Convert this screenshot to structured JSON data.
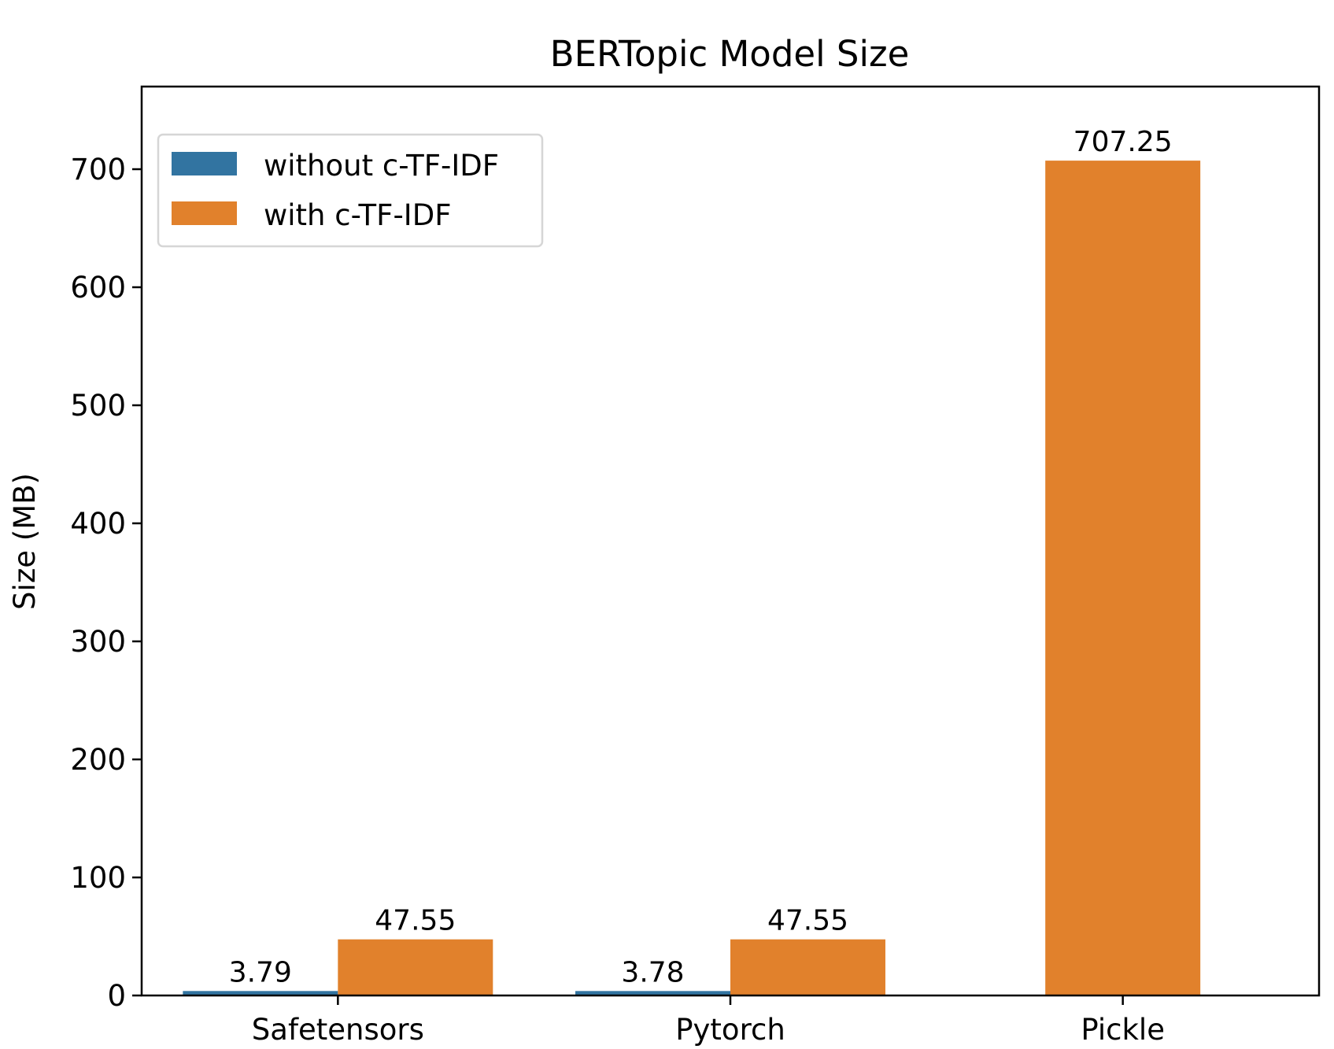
{
  "chart_data": {
    "type": "bar",
    "title": "BERTopic Model Size",
    "xlabel": "",
    "ylabel": "Size (MB)",
    "ylim": [
      0,
      770
    ],
    "yticks": [
      0,
      100,
      200,
      300,
      400,
      500,
      600,
      700
    ],
    "categories": [
      "Safetensors",
      "Pytorch",
      "Pickle"
    ],
    "series": [
      {
        "name": "without c-TF-IDF",
        "color": "#3274a1",
        "values": [
          3.79,
          3.78,
          null
        ],
        "labels": [
          "3.79",
          "3.78",
          ""
        ]
      },
      {
        "name": "with c-TF-IDF",
        "color": "#e1812c",
        "values": [
          47.55,
          47.55,
          707.25
        ],
        "labels": [
          "47.55",
          "47.55",
          "707.25"
        ]
      }
    ],
    "legend": "top-left",
    "grid": false
  }
}
